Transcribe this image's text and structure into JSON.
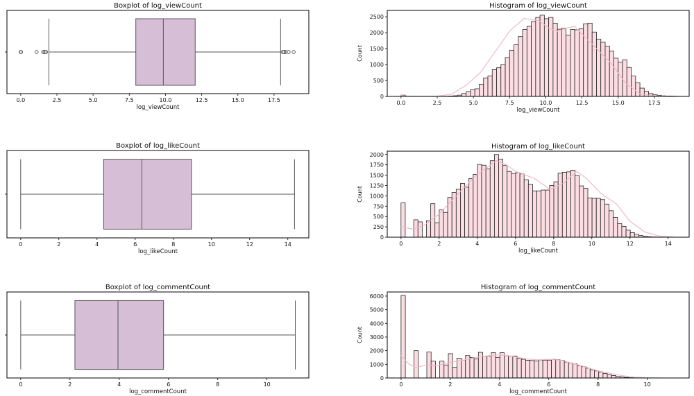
{
  "figure": {
    "colors": {
      "box_fill": "#d6bfd6",
      "box_edge": "#555555",
      "hist_fill": "#fbdde3",
      "hist_edge": "#222222",
      "kde_line": "#f2b8c6",
      "axes": "#000000"
    }
  },
  "chart_data": [
    {
      "id": "box-view",
      "type": "boxplot",
      "title": "Boxplot of log_viewCount",
      "xlabel": "log_viewCount",
      "ylabel": "",
      "xlim": [
        -0.95,
        19.9
      ],
      "xticks": [
        0.0,
        2.5,
        5.0,
        7.5,
        10.0,
        12.5,
        15.0,
        17.5
      ],
      "xtick_labels": [
        "0.0",
        "2.5",
        "5.0",
        "7.5",
        "10.0",
        "12.5",
        "15.0",
        "17.5"
      ],
      "whisker_low": 1.95,
      "q1": 7.95,
      "median": 9.85,
      "q3": 12.05,
      "whisker_high": 17.95,
      "outliers": [
        0.0,
        0.02,
        1.1,
        1.55,
        1.65,
        1.75,
        18.1,
        18.2,
        18.3,
        18.5,
        18.85
      ]
    },
    {
      "id": "hist-view",
      "type": "histogram",
      "title": "Histogram of log_viewCount",
      "xlabel": "log_viewCount",
      "ylabel": "Count",
      "xlim": [
        -0.95,
        19.9
      ],
      "ylim": [
        0,
        2700
      ],
      "xticks": [
        0.0,
        2.5,
        5.0,
        7.5,
        10.0,
        12.5,
        15.0,
        17.5
      ],
      "xtick_labels": [
        "0.0",
        "2.5",
        "5.0",
        "7.5",
        "10.0",
        "12.5",
        "15.0",
        "17.5"
      ],
      "yticks": [
        0,
        500,
        1000,
        1500,
        2000,
        2500
      ],
      "ytick_labels": [
        "0",
        "500",
        "1000",
        "1500",
        "2000",
        "2500"
      ],
      "bin_start": 0.0,
      "bin_width": 0.3,
      "counts": [
        40,
        5,
        3,
        2,
        2,
        2,
        2,
        2,
        3,
        4,
        6,
        10,
        20,
        40,
        90,
        150,
        210,
        240,
        380,
        580,
        640,
        840,
        900,
        1000,
        1220,
        1450,
        1620,
        1880,
        2100,
        2200,
        2350,
        2480,
        2550,
        2440,
        2480,
        2300,
        2110,
        2140,
        1920,
        2100,
        2090,
        2120,
        2280,
        2300,
        2020,
        1800,
        1700,
        1580,
        1420,
        1200,
        1080,
        1150,
        910,
        640,
        430,
        260,
        160,
        90,
        50,
        30,
        18,
        12,
        8,
        5
      ],
      "kde": [
        [
          0,
          30
        ],
        [
          0.5,
          10
        ],
        [
          1.5,
          5
        ],
        [
          2.5,
          8
        ],
        [
          3.5,
          70
        ],
        [
          4.5,
          350
        ],
        [
          5.5,
          760
        ],
        [
          6.5,
          1400
        ],
        [
          7.5,
          2050
        ],
        [
          8.5,
          2450
        ],
        [
          9.5,
          2380
        ],
        [
          10.2,
          2150
        ],
        [
          10.8,
          2040
        ],
        [
          11.5,
          2150
        ],
        [
          12.0,
          2200
        ],
        [
          12.5,
          1950
        ],
        [
          13.5,
          1500
        ],
        [
          14.5,
          1050
        ],
        [
          15.5,
          420
        ],
        [
          16.5,
          80
        ],
        [
          17.5,
          15
        ],
        [
          18.5,
          3
        ]
      ]
    },
    {
      "id": "box-like",
      "type": "boxplot",
      "title": "Boxplot of log_likeCount",
      "xlabel": "log_likeCount",
      "ylabel": "",
      "xlim": [
        -0.72,
        15.1
      ],
      "xticks": [
        0,
        2,
        4,
        6,
        8,
        10,
        12,
        14
      ],
      "xtick_labels": [
        "0",
        "2",
        "4",
        "6",
        "8",
        "10",
        "12",
        "14"
      ],
      "whisker_low": 0.0,
      "q1": 4.35,
      "median": 6.35,
      "q3": 8.95,
      "whisker_high": 14.35,
      "outliers": []
    },
    {
      "id": "hist-like",
      "type": "histogram",
      "title": "Histogram of log_likeCount",
      "xlabel": "log_likeCount",
      "ylabel": "Count",
      "xlim": [
        -0.72,
        15.1
      ],
      "ylim": [
        0,
        2080
      ],
      "xticks": [
        0,
        2,
        4,
        6,
        8,
        10,
        12,
        14
      ],
      "xtick_labels": [
        "0",
        "2",
        "4",
        "6",
        "8",
        "10",
        "12",
        "14"
      ],
      "yticks": [
        0,
        250,
        500,
        750,
        1000,
        1250,
        1500,
        1750,
        2000
      ],
      "ytick_labels": [
        "0",
        "250",
        "500",
        "750",
        "1000",
        "1250",
        "1500",
        "1750",
        "2000"
      ],
      "bin_start": 0.0,
      "bin_width": 0.2225,
      "counts": [
        830,
        0,
        0,
        420,
        370,
        0,
        400,
        810,
        350,
        660,
        600,
        960,
        1080,
        1160,
        1300,
        1210,
        1420,
        1520,
        1760,
        1740,
        1650,
        1850,
        2000,
        1890,
        1740,
        1590,
        1540,
        1560,
        1530,
        1390,
        1280,
        1120,
        1120,
        1140,
        1140,
        1250,
        1340,
        1550,
        1570,
        1580,
        1620,
        1490,
        1240,
        1180,
        950,
        940,
        940,
        910,
        800,
        640,
        480,
        330,
        260,
        170,
        110,
        70,
        40,
        20,
        10,
        5,
        3,
        2,
        1,
        1
      ],
      "kde": [
        [
          0,
          250
        ],
        [
          0.6,
          200
        ],
        [
          1.2,
          280
        ],
        [
          2,
          560
        ],
        [
          3,
          1050
        ],
        [
          4,
          1520
        ],
        [
          5,
          1850
        ],
        [
          5.5,
          1760
        ],
        [
          6,
          1590
        ],
        [
          7,
          1420
        ],
        [
          7.8,
          1150
        ],
        [
          8.5,
          1300
        ],
        [
          9.2,
          1590
        ],
        [
          9.7,
          1430
        ],
        [
          10.5,
          1050
        ],
        [
          11.3,
          800
        ],
        [
          12,
          380
        ],
        [
          12.8,
          120
        ],
        [
          13.5,
          30
        ],
        [
          14.3,
          3
        ]
      ]
    },
    {
      "id": "box-comment",
      "type": "boxplot",
      "title": "Boxplot of log_commentCount",
      "xlabel": "log_commentCount",
      "ylabel": "",
      "xlim": [
        -0.56,
        11.7
      ],
      "xticks": [
        0,
        2,
        4,
        6,
        8,
        10
      ],
      "xtick_labels": [
        "0",
        "2",
        "4",
        "6",
        "8",
        "10"
      ],
      "whisker_low": 0.0,
      "q1": 2.2,
      "median": 3.95,
      "q3": 5.8,
      "whisker_high": 11.15,
      "outliers": []
    },
    {
      "id": "hist-comment",
      "type": "histogram",
      "title": "Histogram of log_commentCount",
      "xlabel": "log_commentCount",
      "ylabel": "Count",
      "xlim": [
        -0.56,
        11.7
      ],
      "ylim": [
        0,
        6300
      ],
      "xticks": [
        0,
        2,
        4,
        6,
        8,
        10
      ],
      "xtick_labels": [
        "0",
        "2",
        "4",
        "6",
        "8",
        "10"
      ],
      "yticks": [
        0,
        1000,
        2000,
        3000,
        4000,
        5000,
        6000
      ],
      "ytick_labels": [
        "0",
        "1000",
        "2000",
        "3000",
        "4000",
        "5000",
        "6000"
      ],
      "bin_start": 0.0,
      "bin_width": 0.1745,
      "counts": [
        6050,
        0,
        0,
        2000,
        0,
        0,
        1900,
        1230,
        0,
        1230,
        950,
        1780,
        780,
        1450,
        1310,
        1640,
        1500,
        1400,
        1880,
        1590,
        1600,
        1850,
        1510,
        1850,
        1640,
        1600,
        1610,
        1440,
        1370,
        1300,
        1280,
        1240,
        1320,
        1310,
        1310,
        1360,
        1340,
        1290,
        1170,
        1100,
        1030,
        900,
        830,
        720,
        600,
        520,
        440,
        330,
        230,
        180,
        110,
        70,
        40,
        20,
        10,
        5,
        3,
        2,
        1,
        1,
        1,
        1,
        1,
        1
      ],
      "kde": [
        [
          0,
          1650
        ],
        [
          0.3,
          1050
        ],
        [
          0.6,
          750
        ],
        [
          1,
          950
        ],
        [
          1.5,
          920
        ],
        [
          2,
          1150
        ],
        [
          2.5,
          1300
        ],
        [
          3,
          1500
        ],
        [
          3.5,
          1620
        ],
        [
          4,
          1700
        ],
        [
          4.5,
          1600
        ],
        [
          5,
          1420
        ],
        [
          5.5,
          1330
        ],
        [
          6,
          1360
        ],
        [
          6.5,
          1300
        ],
        [
          7,
          1050
        ],
        [
          7.5,
          800
        ],
        [
          8,
          520
        ],
        [
          8.5,
          330
        ],
        [
          9,
          170
        ],
        [
          9.5,
          60
        ],
        [
          10,
          15
        ],
        [
          10.5,
          3
        ]
      ]
    }
  ]
}
